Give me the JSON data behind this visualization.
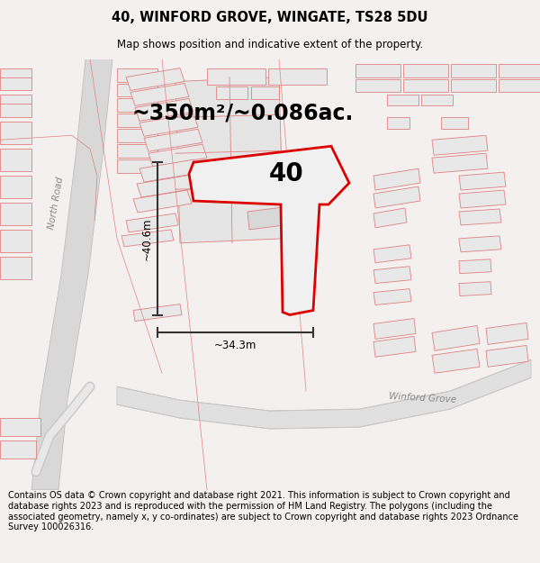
{
  "title": "40, WINFORD GROVE, WINGATE, TS28 5DU",
  "subtitle": "Map shows position and indicative extent of the property.",
  "area_text": "~350m²/~0.086ac.",
  "label_40": "40",
  "dim_height": "~40.6m",
  "dim_width": "~34.3m",
  "road_label_wg": "Winford Grove",
  "road_label_nr": "North Road",
  "footer_text": "Contains OS data © Crown copyright and database right 2021. This information is subject to Crown copyright and database rights 2023 and is reproduced with the permission of HM Land Registry. The polygons (including the associated geometry, namely x, y co-ordinates) are subject to Crown copyright and database rights 2023 Ordnance Survey 100026316.",
  "bg_color": "#f5f0f0",
  "map_bg": "#ffffff",
  "building_fill": "#e8e8e8",
  "building_edge": "#e08080",
  "road_fill": "#e8e8e8",
  "road_edge": "#e08080",
  "plot_edge": "#dd0000",
  "plot_fill": "#f0f0f0",
  "dim_line_color": "#333333",
  "text_color": "#333333",
  "road_text_color": "#888888",
  "title_fontsize": 10.5,
  "subtitle_fontsize": 8.5,
  "area_fontsize": 17,
  "label_fontsize": 20,
  "dim_fontsize": 8.5,
  "footer_fontsize": 7.0,
  "nr_label_fontsize": 7.5,
  "wg_label_fontsize": 7.5
}
